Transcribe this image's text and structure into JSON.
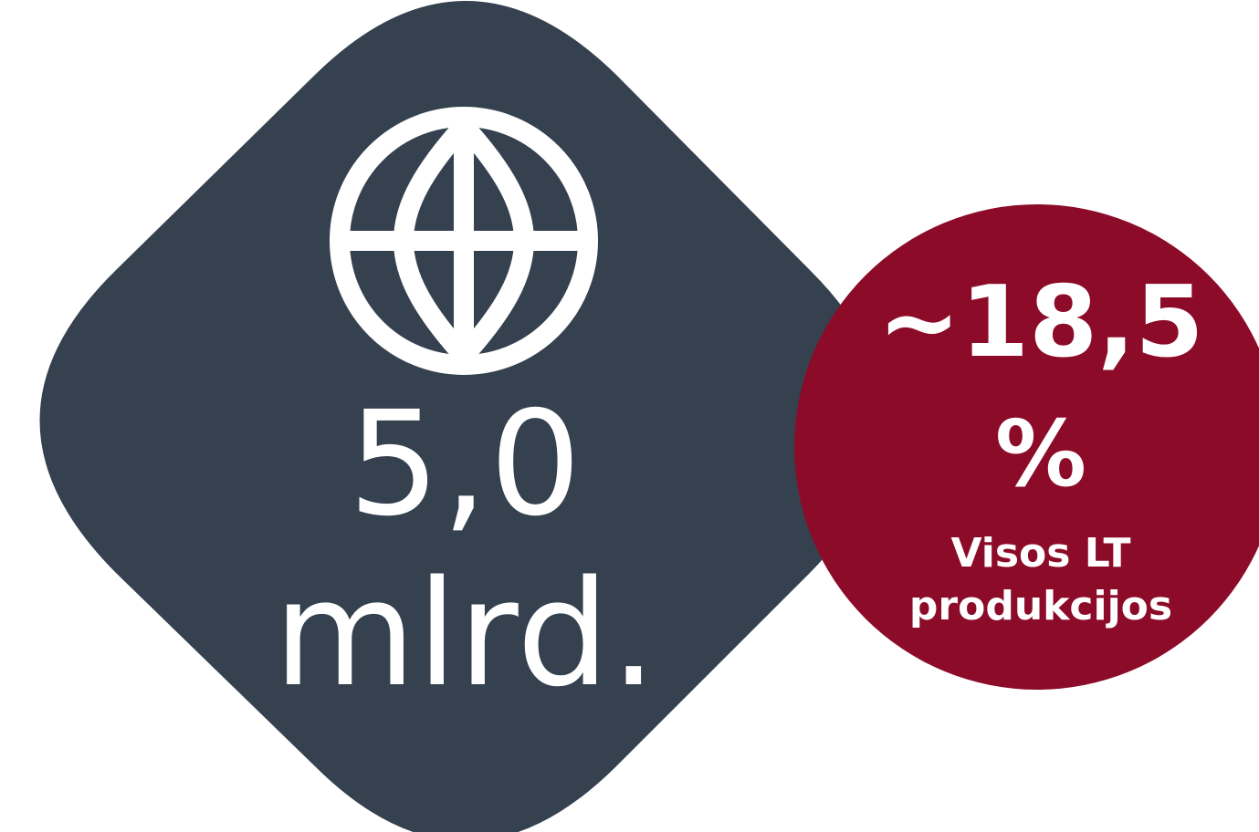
{
  "stat": {
    "value": "5,0",
    "unit": "mlrd.",
    "icon": "globe-icon"
  },
  "badge": {
    "value": "~18,5",
    "percent_sign": "%",
    "caption_line1": "Visos LT",
    "caption_line2": "produkcijos"
  },
  "colors": {
    "diamond": "#35414f",
    "badge": "#8c0b28",
    "text": "#ffffff"
  }
}
